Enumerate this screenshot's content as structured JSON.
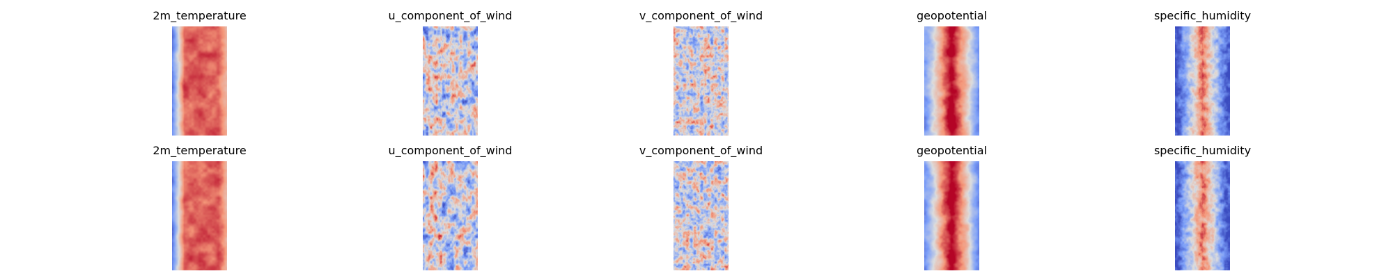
{
  "rows": [
    {
      "panels": [
        {
          "title": "2m_temperature",
          "pattern": "temp"
        },
        {
          "title": "u_component_of_wind",
          "pattern": "uwind"
        },
        {
          "title": "v_component_of_wind",
          "pattern": "vwind"
        },
        {
          "title": "geopotential",
          "pattern": "geo"
        },
        {
          "title": "specific_humidity",
          "pattern": "hum"
        }
      ]
    },
    {
      "panels": [
        {
          "title": "2m_temperature",
          "pattern": "temp"
        },
        {
          "title": "u_component_of_wind",
          "pattern": "uwind"
        },
        {
          "title": "v_component_of_wind",
          "pattern": "vwind"
        },
        {
          "title": "geopotential",
          "pattern": "geo"
        },
        {
          "title": "specific_humidity",
          "pattern": "hum"
        }
      ]
    }
  ],
  "colormap": "coolwarm"
}
